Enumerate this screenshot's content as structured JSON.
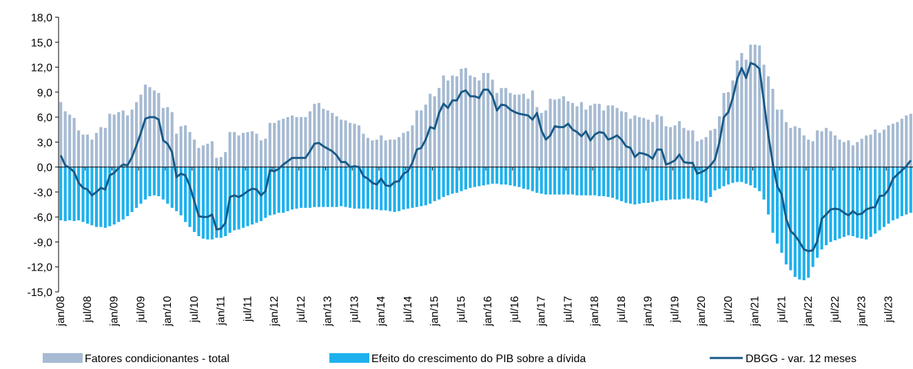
{
  "chart_data": {
    "type": "bar",
    "categories": [
      "jan/08",
      null,
      null,
      null,
      null,
      null,
      "jul/08",
      null,
      null,
      null,
      null,
      null,
      "jan/09",
      null,
      null,
      null,
      null,
      null,
      "jul/09",
      null,
      null,
      null,
      null,
      null,
      "jan/10",
      null,
      null,
      null,
      null,
      null,
      "jul/10",
      null,
      null,
      null,
      null,
      null,
      "jan/11",
      null,
      null,
      null,
      null,
      null,
      "jul/11",
      null,
      null,
      null,
      null,
      null,
      "jan/12",
      null,
      null,
      null,
      null,
      null,
      "jul/12",
      null,
      null,
      null,
      null,
      null,
      "jan/13",
      null,
      null,
      null,
      null,
      null,
      "jul/13",
      null,
      null,
      null,
      null,
      null,
      "jan/14",
      null,
      null,
      null,
      null,
      null,
      "jul/14",
      null,
      null,
      null,
      null,
      null,
      "jan/15",
      null,
      null,
      null,
      null,
      null,
      "jul/15",
      null,
      null,
      null,
      null,
      null,
      "jan/16",
      null,
      null,
      null,
      null,
      null,
      "jul/16",
      null,
      null,
      null,
      null,
      null,
      "jan/17",
      null,
      null,
      null,
      null,
      null,
      "jul/17",
      null,
      null,
      null,
      null,
      null,
      "jan/18",
      null,
      null,
      null,
      null,
      null,
      "jul/18",
      null,
      null,
      null,
      null,
      null,
      "jan/19",
      null,
      null,
      null,
      null,
      null,
      "jul/19",
      null,
      null,
      null,
      null,
      null,
      "jan/20",
      null,
      null,
      null,
      null,
      null,
      "jul/20",
      null,
      null,
      null,
      null,
      null,
      "jan/21",
      null,
      null,
      null,
      null,
      null,
      "jul/21",
      null,
      null,
      null,
      null,
      null,
      "jan/22",
      null,
      null,
      null,
      null,
      null,
      "jul/22",
      null,
      null,
      null,
      null,
      null,
      "jan/23",
      null,
      null,
      null,
      null,
      null,
      "jul/23",
      null,
      null,
      null,
      null,
      null
    ],
    "series": [
      {
        "name": "Fatores condicionantes - total",
        "type": "bar",
        "color": "#a6bad2",
        "values": [
          7.8,
          6.7,
          6.3,
          5.9,
          4.4,
          3.9,
          3.9,
          3.3,
          4.1,
          4.8,
          4.7,
          6.4,
          6.3,
          6.6,
          6.8,
          6.2,
          6.9,
          7.8,
          8.7,
          9.9,
          9.6,
          9.2,
          8.9,
          7.1,
          7.2,
          6.6,
          4.0,
          4.9,
          5.0,
          4.2,
          3.3,
          2.3,
          2.6,
          2.8,
          3.1,
          1.1,
          1.2,
          1.8,
          4.2,
          4.2,
          3.8,
          4.1,
          4.2,
          4.3,
          4.0,
          3.2,
          3.4,
          5.3,
          5.3,
          5.6,
          5.8,
          6.0,
          6.2,
          6.0,
          6.0,
          6.0,
          6.7,
          7.6,
          7.7,
          7.0,
          6.8,
          6.5,
          6.1,
          5.7,
          5.6,
          5.3,
          5.2,
          5.0,
          4.0,
          3.5,
          3.2,
          3.3,
          3.8,
          3.2,
          3.3,
          3.3,
          3.6,
          4.1,
          4.3,
          5.0,
          6.8,
          6.8,
          7.5,
          8.8,
          8.5,
          9.5,
          11.0,
          10.4,
          11.0,
          10.9,
          11.8,
          11.9,
          11.0,
          10.8,
          10.4,
          11.3,
          11.3,
          10.5,
          8.9,
          9.5,
          9.5,
          8.9,
          8.7,
          8.7,
          8.8,
          8.2,
          9.2,
          7.2,
          6.5,
          6.8,
          8.2,
          8.1,
          8.2,
          8.5,
          7.9,
          7.7,
          7.3,
          7.8,
          6.9,
          7.4,
          7.6,
          7.6,
          6.8,
          7.4,
          7.4,
          7.1,
          6.7,
          6.6,
          5.8,
          6.2,
          6.0,
          5.9,
          5.7,
          5.4,
          6.3,
          6.1,
          4.9,
          4.8,
          5.0,
          5.5,
          4.7,
          4.4,
          4.4,
          3.1,
          3.3,
          3.6,
          4.4,
          4.6,
          6.1,
          8.9,
          9.0,
          10.4,
          12.8,
          13.7,
          12.9,
          14.7,
          14.7,
          14.6,
          12.3,
          10.9,
          9.4,
          6.9,
          6.9,
          5.4,
          4.7,
          4.9,
          4.7,
          3.8,
          3.3,
          3.1,
          4.4,
          4.3,
          4.7,
          4.3,
          3.8,
          3.3,
          3.0,
          3.2,
          2.6,
          3.0,
          3.4,
          3.8,
          3.9,
          4.5,
          4.1,
          4.5,
          5.0,
          5.2,
          5.4,
          5.8,
          6.2,
          6.4
        ]
      },
      {
        "name": "Efeito do crescimento do PIB sobre a dívida",
        "type": "bar",
        "color": "#1eb1ed",
        "values": [
          -6.4,
          -6.5,
          -6.4,
          -6.5,
          -6.4,
          -6.6,
          -6.8,
          -7.0,
          -7.2,
          -7.2,
          -7.3,
          -7.1,
          -6.9,
          -6.6,
          -6.3,
          -5.9,
          -5.4,
          -4.9,
          -4.4,
          -3.9,
          -3.5,
          -3.4,
          -3.5,
          -3.9,
          -4.4,
          -4.9,
          -5.3,
          -5.8,
          -6.6,
          -7.2,
          -7.8,
          -8.3,
          -8.6,
          -8.7,
          -8.7,
          -8.5,
          -8.5,
          -8.3,
          -7.9,
          -7.6,
          -7.5,
          -7.3,
          -7.1,
          -6.9,
          -6.7,
          -6.5,
          -6.1,
          -5.8,
          -5.7,
          -5.5,
          -5.5,
          -5.3,
          -5.1,
          -5.0,
          -4.9,
          -4.9,
          -4.9,
          -4.8,
          -4.8,
          -4.8,
          -4.8,
          -4.8,
          -4.8,
          -4.7,
          -4.8,
          -4.9,
          -5.0,
          -5.0,
          -5.0,
          -5.0,
          -5.1,
          -5.1,
          -5.2,
          -5.2,
          -5.3,
          -5.4,
          -5.3,
          -5.1,
          -5.0,
          -4.9,
          -4.8,
          -4.7,
          -4.6,
          -4.4,
          -4.1,
          -3.9,
          -3.6,
          -3.4,
          -3.2,
          -3.1,
          -2.9,
          -2.7,
          -2.5,
          -2.4,
          -2.3,
          -2.2,
          -2.1,
          -2.0,
          -2.0,
          -2.1,
          -2.1,
          -2.2,
          -2.3,
          -2.4,
          -2.6,
          -2.7,
          -2.9,
          -3.1,
          -3.2,
          -3.3,
          -3.3,
          -3.3,
          -3.3,
          -3.3,
          -3.3,
          -3.3,
          -3.4,
          -3.4,
          -3.4,
          -3.4,
          -3.4,
          -3.5,
          -3.5,
          -3.6,
          -3.7,
          -3.9,
          -4.1,
          -4.3,
          -4.4,
          -4.5,
          -4.4,
          -4.3,
          -4.3,
          -4.2,
          -4.1,
          -4.0,
          -4.0,
          -3.9,
          -3.9,
          -3.9,
          -3.8,
          -3.8,
          -3.9,
          -4.0,
          -4.1,
          -4.3,
          -3.6,
          -2.8,
          -2.6,
          -2.3,
          -2.1,
          -1.9,
          -1.8,
          -1.8,
          -2.0,
          -2.2,
          -2.5,
          -2.9,
          -3.9,
          -5.7,
          -7.9,
          -9.2,
          -10.3,
          -11.7,
          -12.4,
          -13.2,
          -13.5,
          -13.6,
          -13.3,
          -12.0,
          -10.9,
          -9.9,
          -9.4,
          -9.0,
          -8.8,
          -8.6,
          -8.4,
          -8.2,
          -8.3,
          -8.5,
          -8.6,
          -8.7,
          -8.4,
          -8.0,
          -7.6,
          -7.2,
          -6.8,
          -6.4,
          -6.2,
          -5.9,
          -5.7,
          -5.5
        ]
      },
      {
        "name": "DBGG - var. 12 meses",
        "type": "line",
        "color": "#175a87",
        "values": [
          1.4,
          0.2,
          -0.1,
          -0.6,
          -1.9,
          -2.5,
          -2.7,
          -3.4,
          -3.0,
          -2.5,
          -2.7,
          -1.0,
          -0.7,
          -0.1,
          0.3,
          0.2,
          1.2,
          2.6,
          4.1,
          5.8,
          6.0,
          6.0,
          5.7,
          3.2,
          2.8,
          1.8,
          -1.2,
          -0.8,
          -1.0,
          -2.3,
          -4.1,
          -5.9,
          -6.0,
          -6.0,
          -5.7,
          -7.5,
          -7.4,
          -6.7,
          -3.6,
          -3.4,
          -3.6,
          -3.3,
          -2.9,
          -2.6,
          -2.7,
          -3.4,
          -2.9,
          -0.4,
          -0.5,
          -0.2,
          0.3,
          0.7,
          1.1,
          1.1,
          1.1,
          1.1,
          1.9,
          2.8,
          2.9,
          2.5,
          2.2,
          1.9,
          1.4,
          0.6,
          0.6,
          0.0,
          0.1,
          0.0,
          -1.1,
          -1.4,
          -1.9,
          -2.1,
          -1.4,
          -2.2,
          -2.3,
          -1.8,
          -1.7,
          -0.8,
          -0.5,
          0.5,
          2.1,
          2.3,
          3.3,
          4.8,
          4.6,
          6.5,
          7.6,
          7.1,
          8.0,
          8.0,
          9.0,
          9.2,
          8.5,
          8.5,
          8.3,
          9.3,
          9.3,
          8.5,
          6.8,
          7.5,
          7.4,
          6.9,
          6.6,
          6.4,
          6.3,
          6.2,
          5.7,
          6.5,
          4.4,
          3.3,
          3.8,
          4.9,
          4.8,
          4.8,
          5.2,
          4.5,
          4.2,
          3.7,
          4.3,
          3.2,
          3.9,
          4.2,
          4.1,
          3.3,
          3.5,
          3.8,
          3.3,
          2.5,
          2.3,
          1.2,
          1.7,
          1.6,
          1.4,
          1.0,
          2.1,
          2.1,
          0.3,
          0.5,
          0.8,
          1.5,
          0.6,
          0.5,
          0.5,
          -0.8,
          -0.6,
          -0.3,
          0.2,
          0.9,
          3.0,
          6.0,
          6.6,
          8.3,
          10.6,
          11.9,
          10.7,
          12.5,
          12.3,
          11.8,
          7.8,
          3.8,
          0.4,
          -2.3,
          -3.3,
          -6.2,
          -7.7,
          -8.2,
          -9.0,
          -9.9,
          -10.1,
          -10.0,
          -8.9,
          -6.2,
          -5.7,
          -5.1,
          -5.0,
          -5.1,
          -5.5,
          -5.8,
          -5.3,
          -5.7,
          -5.6,
          -5.1,
          -4.9,
          -4.8,
          -3.5,
          -3.4,
          -2.7,
          -1.4,
          -0.9,
          -0.4,
          0.1,
          0.8
        ]
      }
    ],
    "ylim": [
      -15,
      18
    ],
    "yticks": [
      {
        "value": -15,
        "label": "-15,0"
      },
      {
        "value": -12,
        "label": "-12,0"
      },
      {
        "value": -9,
        "label": "-9,0"
      },
      {
        "value": -6,
        "label": "-6,0"
      },
      {
        "value": -3,
        "label": "-3,0"
      },
      {
        "value": 0,
        "label": "0,0"
      },
      {
        "value": 3,
        "label": "3,0"
      },
      {
        "value": 6,
        "label": "6,0"
      },
      {
        "value": 9,
        "label": "9,0"
      },
      {
        "value": 12,
        "label": "12,0"
      },
      {
        "value": 15,
        "label": "15,0"
      },
      {
        "value": 18,
        "label": "18,0"
      }
    ],
    "grid": false,
    "legend": "bottom"
  }
}
